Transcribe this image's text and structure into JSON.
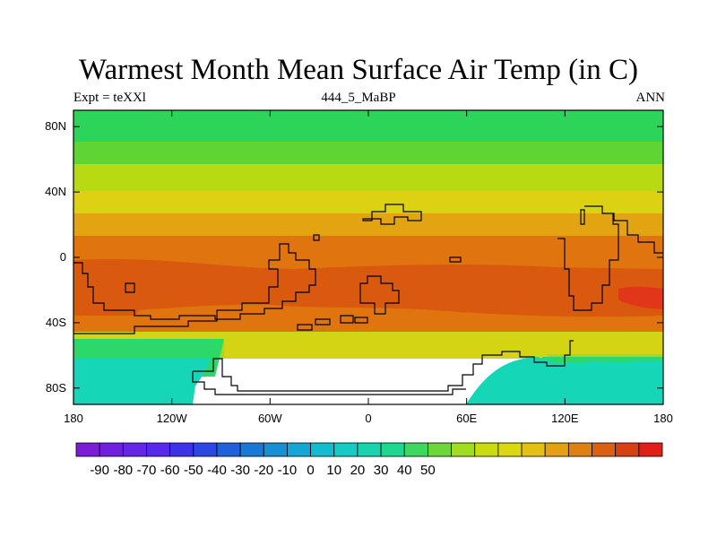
{
  "map": {
    "title": "Warmest Month Mean Surface Air Temp (in C)",
    "left_label": "Expt = teXXl",
    "center_label": "444_5_MaBP",
    "right_label": "ANN",
    "lon_ticks": [
      "180",
      "120W",
      "60W",
      "0",
      "60E",
      "120E",
      "180"
    ],
    "lat_ticks": [
      "80N",
      "40N",
      "0",
      "40S",
      "80S"
    ],
    "lat_tick_values": [
      80,
      40,
      0,
      -40,
      -80
    ],
    "lon_range": [
      -180,
      180
    ],
    "lat_range": [
      -90,
      90
    ]
  },
  "colorbar": {
    "labels": [
      "-90",
      "-80",
      "-70",
      "-60",
      "-50",
      "-40",
      "-30",
      "-20",
      "-10",
      "0",
      "10",
      "20",
      "30",
      "40",
      "50"
    ],
    "colors": [
      "#7a1cd8",
      "#6e1fe0",
      "#6426e8",
      "#5828ee",
      "#3c32ec",
      "#2c48e4",
      "#2060dc",
      "#1878d8",
      "#1590d6",
      "#13a8d4",
      "#12bcd0",
      "#14ccc4",
      "#16d4b0",
      "#1cd890",
      "#3cd860",
      "#6cd838",
      "#a0dc20",
      "#c8dc10",
      "#dcd810",
      "#e4c010",
      "#e4a010",
      "#e08010",
      "#dc6010",
      "#d84010",
      "#e21e18"
    ]
  },
  "color_fill": {
    "arctic": "#2cd45a",
    "north_high": "#5ed534",
    "north_mid": "#b8da12",
    "north_low": "#dcd112",
    "subtropic": "#e2a410",
    "tropic": "#e07510",
    "hot": "#d9590f",
    "hotspot": "#e2361a",
    "south_mid": "#d4d414",
    "south_cool": "#9edc24",
    "south_ocean": "#2cd86a",
    "antarctic": "#16d6b8"
  }
}
